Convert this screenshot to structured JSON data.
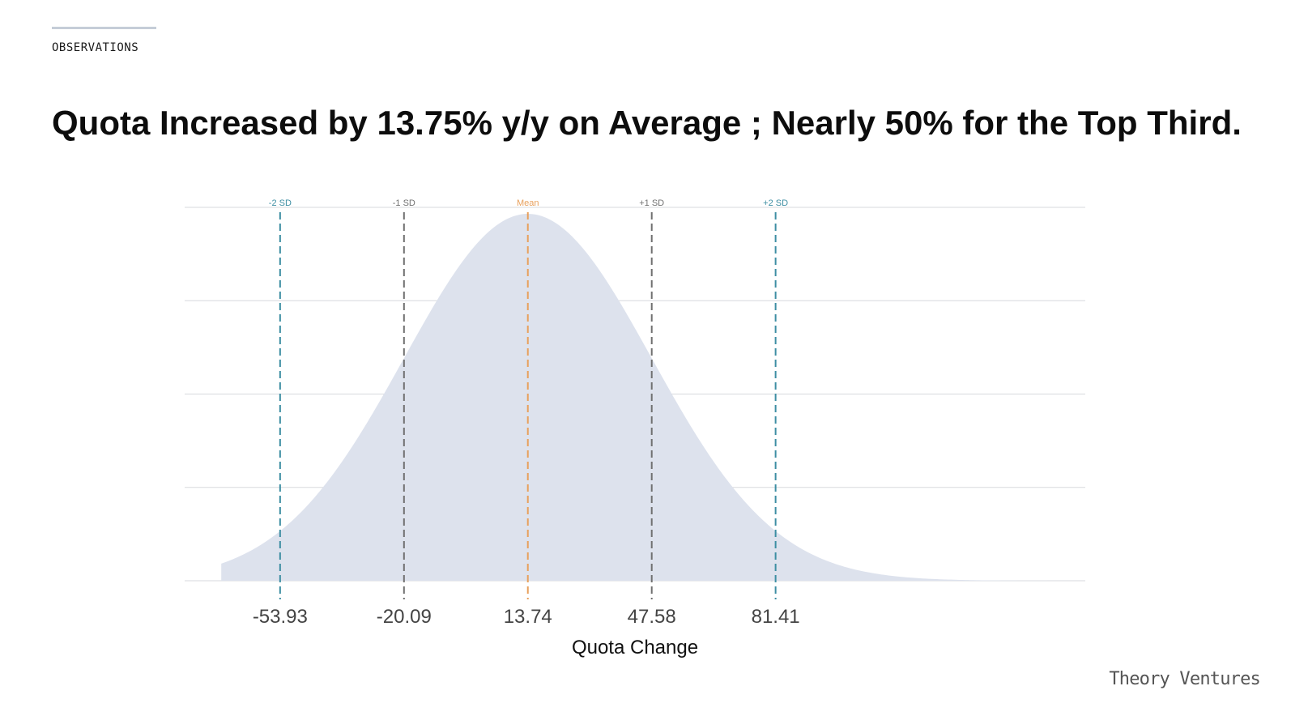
{
  "header": {
    "section_label": "OBSERVATIONS",
    "title": "Quota Increased by 13.75% y/y on Average ; Nearly 50% for the Top Third."
  },
  "footer": {
    "brand": "Theory Ventures"
  },
  "colors": {
    "fill": "#dde2ed",
    "grid": "#d7d9de",
    "sd2": "#3d8ea3",
    "sd1": "#707070",
    "mean": "#e8a05c"
  },
  "chart_data": {
    "type": "area",
    "subtype": "normal-distribution",
    "xlabel": "Quota Change",
    "ylabel": "",
    "title": "",
    "mean": 13.74,
    "sd": 33.835,
    "xlim": [
      -80.0,
      166.0
    ],
    "grid": "horizontal",
    "tick_values": [
      -53.93,
      -20.09,
      13.74,
      47.58,
      81.41
    ],
    "tick_labels": [
      "-53.93",
      "-20.09",
      "13.74",
      "47.58",
      "81.41"
    ],
    "markers": [
      {
        "label": "-2 SD",
        "x": -53.93,
        "kind": "sd2"
      },
      {
        "label": "-1 SD",
        "x": -20.09,
        "kind": "sd1"
      },
      {
        "label": "Mean",
        "x": 13.74,
        "kind": "mean"
      },
      {
        "label": "+1 SD",
        "x": 47.58,
        "kind": "sd1"
      },
      {
        "label": "+2 SD",
        "x": 81.41,
        "kind": "sd2"
      }
    ]
  }
}
